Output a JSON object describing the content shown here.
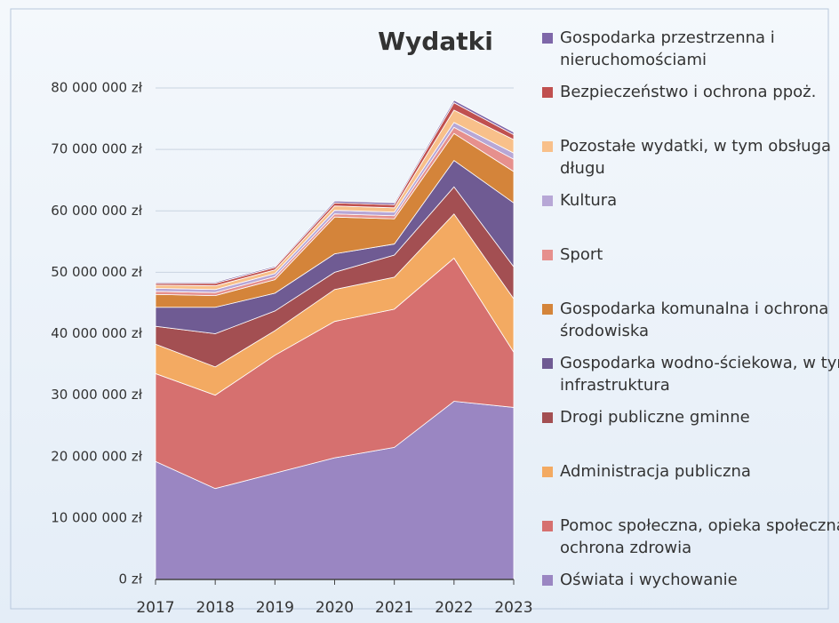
{
  "chart_data": {
    "type": "stacked_area",
    "title": "Wydatki",
    "categories": [
      "2017",
      "2018",
      "2019",
      "2020",
      "2021",
      "2022",
      "2023"
    ],
    "ylim": [
      0,
      80000000
    ],
    "yticks": [
      {
        "value": 0,
        "label": "0 zł"
      },
      {
        "value": 10000000,
        "label": "10 000 000 zł"
      },
      {
        "value": 20000000,
        "label": "20 000 000 zł"
      },
      {
        "value": 30000000,
        "label": "30 000 000 zł"
      },
      {
        "value": 40000000,
        "label": "40 000 000 zł"
      },
      {
        "value": 50000000,
        "label": "50 000 000 zł"
      },
      {
        "value": 60000000,
        "label": "60 000 000 zł"
      },
      {
        "value": 70000000,
        "label": "70 000 000 zł"
      },
      {
        "value": 80000000,
        "label": "80 000 000 zł"
      }
    ],
    "grid": true,
    "series": [
      {
        "name": "Oświata i wychowanie",
        "color": "#9a86c2",
        "values": [
          19200000,
          14800000,
          17300000,
          19800000,
          21500000,
          29000000,
          28000000
        ]
      },
      {
        "name": "Pomoc społeczna, opieka społeczna, ochrona zdrowia",
        "color": "#d6706f",
        "values": [
          14300000,
          15200000,
          19200000,
          22200000,
          22500000,
          23300000,
          9000000
        ]
      },
      {
        "name": "Administracja publiczna",
        "color": "#f3aa62",
        "values": [
          4800000,
          4600000,
          4000000,
          5200000,
          5200000,
          7200000,
          8700000
        ]
      },
      {
        "name": "Drogi publiczne gminne",
        "color": "#a34f52",
        "values": [
          2900000,
          5400000,
          3200000,
          2800000,
          3600000,
          4400000,
          5200000
        ]
      },
      {
        "name": "Gospodarka wodno-ściekowa, w tym infrastruktura",
        "color": "#6f5b93",
        "values": [
          3100000,
          4300000,
          2900000,
          3000000,
          1800000,
          4300000,
          10400000
        ]
      },
      {
        "name": "Gospodarka komunalna i ochrona środowiska",
        "color": "#d4843a",
        "values": [
          2100000,
          1900000,
          2200000,
          6000000,
          4100000,
          4400000,
          5100000
        ]
      },
      {
        "name": "Sport",
        "color": "#e6908d",
        "values": [
          500000,
          500000,
          500000,
          500000,
          500000,
          1000000,
          2000000
        ]
      },
      {
        "name": "Kultura",
        "color": "#b7a7d6",
        "values": [
          500000,
          500000,
          500000,
          600000,
          600000,
          800000,
          1000000
        ]
      },
      {
        "name": "Pozostałe wydatki, w tym obsługa długu",
        "color": "#f8c08a",
        "values": [
          500000,
          600000,
          600000,
          700000,
          700000,
          2000000,
          2200000
        ]
      },
      {
        "name": "Bezpieczeństwo i ochrona ppoż.",
        "color": "#c0504f",
        "values": [
          300000,
          400000,
          400000,
          500000,
          500000,
          1200000,
          800000
        ]
      },
      {
        "name": "Gospodarka przestrzenna i nieruchomościami",
        "color": "#7e67a9",
        "values": [
          200000,
          200000,
          200000,
          300000,
          300000,
          400000,
          400000
        ]
      }
    ]
  }
}
